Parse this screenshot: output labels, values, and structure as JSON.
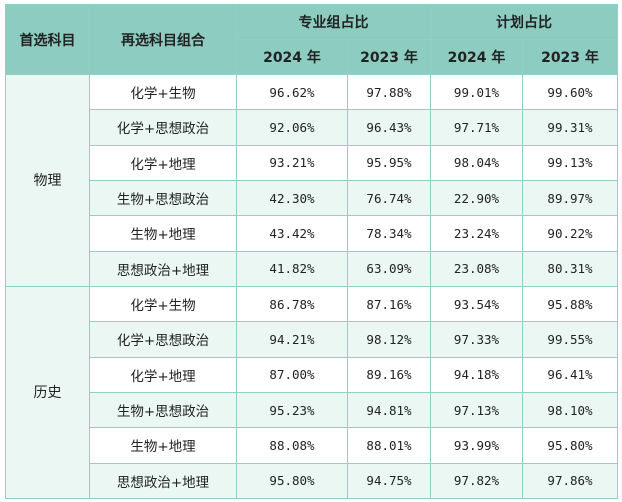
{
  "header": {
    "first_subject": "首选科目",
    "combo": "再选科目组合",
    "major_ratio": "专业组占比",
    "plan_ratio": "计划占比",
    "years": [
      "2024 年",
      "2023 年",
      "2024 年",
      "2023 年"
    ]
  },
  "groups": [
    {
      "name": "物理",
      "rows": [
        {
          "combo": "化学+生物",
          "v": [
            "96.62%",
            "97.88%",
            "99.01%",
            "99.60%"
          ]
        },
        {
          "combo": "化学+思想政治",
          "v": [
            "92.06%",
            "96.43%",
            "97.71%",
            "99.31%"
          ]
        },
        {
          "combo": "化学+地理",
          "v": [
            "93.21%",
            "95.95%",
            "98.04%",
            "99.13%"
          ]
        },
        {
          "combo": "生物+思想政治",
          "v": [
            "42.30%",
            "76.74%",
            "22.90%",
            "89.97%"
          ]
        },
        {
          "combo": "生物+地理",
          "v": [
            "43.42%",
            "78.34%",
            "23.24%",
            "90.22%"
          ]
        },
        {
          "combo": "思想政治+地理",
          "v": [
            "41.82%",
            "63.09%",
            "23.08%",
            "80.31%"
          ]
        }
      ]
    },
    {
      "name": "历史",
      "rows": [
        {
          "combo": "化学+生物",
          "v": [
            "86.78%",
            "87.16%",
            "93.54%",
            "95.88%"
          ]
        },
        {
          "combo": "化学+思想政治",
          "v": [
            "94.21%",
            "98.12%",
            "97.33%",
            "99.55%"
          ]
        },
        {
          "combo": "化学+地理",
          "v": [
            "87.00%",
            "89.16%",
            "94.18%",
            "96.41%"
          ]
        },
        {
          "combo": "生物+思想政治",
          "v": [
            "95.23%",
            "94.81%",
            "97.13%",
            "98.10%"
          ]
        },
        {
          "combo": "生物+地理",
          "v": [
            "88.08%",
            "88.01%",
            "93.99%",
            "95.80%"
          ]
        },
        {
          "combo": "思想政治+地理",
          "v": [
            "95.80%",
            "94.75%",
            "97.82%",
            "97.86%"
          ]
        }
      ]
    }
  ]
}
